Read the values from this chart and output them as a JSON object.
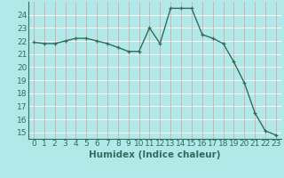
{
  "xlabel": "Humidex (Indice chaleur)",
  "x_values": [
    0,
    1,
    2,
    3,
    4,
    5,
    6,
    7,
    8,
    9,
    10,
    11,
    12,
    13,
    14,
    15,
    16,
    17,
    18,
    19,
    20,
    21,
    22,
    23
  ],
  "y_values": [
    21.9,
    21.8,
    21.8,
    22.0,
    22.2,
    22.2,
    22.0,
    21.8,
    21.5,
    21.2,
    21.2,
    23.0,
    21.8,
    24.5,
    24.5,
    24.5,
    22.5,
    22.2,
    21.8,
    20.4,
    18.8,
    16.5,
    15.1,
    14.8
  ],
  "line_color": "#2e6e5e",
  "marker": "+",
  "marker_color": "#2e6e5e",
  "bg_color": "#b2e8e8",
  "grid_color_h": "#ffffff",
  "grid_color_v": "#d9a0a0",
  "ylim": [
    14.5,
    25.0
  ],
  "yticks": [
    15,
    16,
    17,
    18,
    19,
    20,
    21,
    22,
    23,
    24
  ],
  "xlim": [
    -0.5,
    23.5
  ],
  "label_fontsize": 7.5,
  "tick_fontsize": 6.5
}
